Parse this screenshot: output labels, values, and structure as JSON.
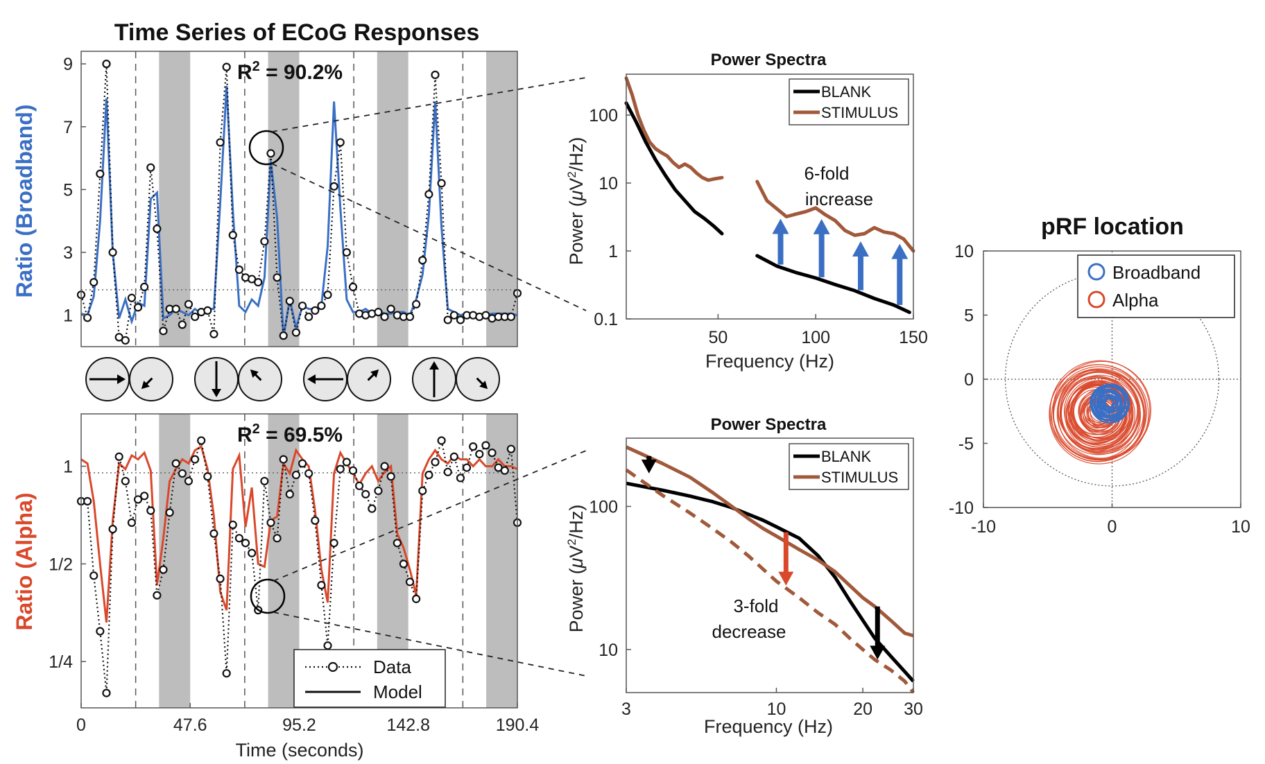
{
  "colors": {
    "broadband": "#3a6fc4",
    "alpha": "#d9482b",
    "stimulus": "#a0593a",
    "blank": "#000000",
    "shade": "#bdbdbd"
  },
  "chart_data": [
    {
      "id": "ts_broadband",
      "type": "line",
      "title": "Time Series of ECoG Responses",
      "ylabel": "Ratio (Broadband)",
      "annotation_prefix": "R",
      "annotation_sup": "2",
      "annotation_value": " = 90.2%",
      "ylim": [
        0,
        9.4
      ],
      "yticks": [
        {
          "v": 1,
          "label": "1"
        },
        {
          "v": 3,
          "label": "3"
        },
        {
          "v": 5,
          "label": "5"
        },
        {
          "v": 7,
          "label": "7"
        },
        {
          "v": 9,
          "label": "9"
        }
      ],
      "xlim": [
        0,
        190.4
      ],
      "shaded_intervals": [
        [
          34,
          47.6
        ],
        [
          81.6,
          95.2
        ],
        [
          129.2,
          142.8
        ],
        [
          176.8,
          190.4
        ]
      ],
      "dashed_lines": [
        23.8,
        71.4,
        119,
        166.6
      ],
      "data": [
        1.65,
        0.92,
        2.05,
        5.5,
        9,
        3,
        0.3,
        0.2,
        1.55,
        1.25,
        1.9,
        5.7,
        3.75,
        0.5,
        1.2,
        1.2,
        0.7,
        1.35,
        0.95,
        1.1,
        1.15,
        0.4,
        6.5,
        8.9,
        3.55,
        2.45,
        2.2,
        2.15,
        2.05,
        3.35,
        6.15,
        2.2,
        0.35,
        1.45,
        0.45,
        1.3,
        0.95,
        1.15,
        1.3,
        1.65,
        5.1,
        6.5,
        3.0,
        1.9,
        1.05,
        1.0,
        1.05,
        1.1,
        0.95,
        1.2,
        1.0,
        0.95,
        0.95,
        1.35,
        2.75,
        4.85,
        8.65,
        5.2,
        0.85,
        1.0,
        0.85,
        1.0,
        1.0,
        0.95,
        1.0,
        0.9,
        0.95,
        0.95,
        0.95,
        1.7
      ],
      "model": [
        1.05,
        1.0,
        1.6,
        4.0,
        7.9,
        3.0,
        0.9,
        1.5,
        0.8,
        1.4,
        1.3,
        4.7,
        4.9,
        0.9,
        1.0,
        1.2,
        1.1,
        1.0,
        1.2,
        1.05,
        1.2,
        1.2,
        4.6,
        8.3,
        4.3,
        1.3,
        1.1,
        1.5,
        1.3,
        2.2,
        5.9,
        4.1,
        0.3,
        1.5,
        0.6,
        1.3,
        1.2,
        1.2,
        1.3,
        3.2,
        7.8,
        4.4,
        1.5,
        1.1,
        1.1,
        1.2,
        1.05,
        1.15,
        1.05,
        1.05,
        1.1,
        1.1,
        1.0,
        1.5,
        2.3,
        4.2,
        7.8,
        3.8,
        1.2,
        1.1,
        1.0,
        1.05,
        1.0,
        1.05,
        1.0,
        1.05,
        1.05,
        1.05,
        1.05,
        1.0
      ]
    },
    {
      "id": "ts_alpha",
      "type": "line",
      "xlabel": "Time (seconds)",
      "ylabel": "Ratio (Alpha)",
      "annotation_prefix": "R",
      "annotation_sup": "2",
      "annotation_value": " = 69.5%",
      "yscale": "log2",
      "ylim": [
        0.18,
        1.45
      ],
      "yticks": [
        {
          "v": 1,
          "label": "1"
        },
        {
          "v": 0.5,
          "label": "1/2"
        },
        {
          "v": 0.25,
          "label": "1/4"
        }
      ],
      "xticks": [
        {
          "v": 0,
          "label": "0"
        },
        {
          "v": 47.6,
          "label": "47.6"
        },
        {
          "v": 95.2,
          "label": "95.2"
        },
        {
          "v": 142.8,
          "label": "142.8"
        },
        {
          "v": 190.4,
          "label": "190.4"
        }
      ],
      "xlim": [
        0,
        190.4
      ],
      "shaded_intervals": [
        [
          34,
          47.6
        ],
        [
          81.6,
          95.2
        ],
        [
          129.2,
          142.8
        ],
        [
          176.8,
          190.4
        ]
      ],
      "dashed_lines": [
        23.8,
        71.4,
        119,
        166.6
      ],
      "legend": [
        {
          "label": "Data",
          "style": "dotted-marker"
        },
        {
          "label": "Model",
          "style": "solid"
        }
      ],
      "data": [
        0.78,
        0.78,
        0.46,
        0.31,
        0.2,
        0.64,
        1.07,
        0.9,
        0.67,
        0.79,
        0.81,
        0.73,
        0.4,
        0.48,
        0.72,
        1.02,
        0.95,
        0.9,
        1.05,
        1.2,
        0.93,
        0.62,
        0.45,
        0.23,
        0.66,
        0.6,
        0.58,
        0.54,
        0.36,
        0.9,
        0.67,
        0.6,
        1.05,
        0.82,
        0.94,
        1.02,
        0.95,
        0.68,
        0.43,
        0.28,
        0.58,
        0.98,
        1.03,
        0.97,
        0.87,
        0.82,
        0.74,
        0.84,
        1.0,
        0.93,
        0.58,
        0.5,
        0.44,
        0.39,
        0.84,
        0.94,
        1.03,
        1.2,
        0.96,
        1.07,
        0.92,
        0.99,
        1.15,
        1.09,
        1.16,
        1.1,
        0.99,
        0.97,
        1.13,
        0.67
      ],
      "model": [
        1.05,
        1.02,
        0.78,
        0.5,
        0.33,
        0.68,
        1.02,
        0.98,
        1.08,
        1.05,
        1.1,
        0.97,
        0.43,
        0.6,
        0.9,
        0.98,
        1.05,
        1.02,
        1.12,
        1.15,
        0.98,
        0.7,
        0.41,
        0.36,
        0.98,
        1.08,
        0.65,
        0.86,
        0.5,
        0.49,
        0.68,
        0.7,
        1.02,
        0.95,
        1.12,
        1.05,
        1.0,
        0.73,
        0.48,
        0.38,
        0.95,
        1.1,
        1.02,
        0.95,
        0.88,
        0.95,
        1.0,
        0.9,
        0.96,
        1.0,
        0.62,
        0.56,
        0.48,
        0.4,
        0.95,
        1.05,
        1.12,
        1.05,
        1.02,
        1.08,
        1.05,
        1.05,
        1.0,
        1.05,
        1.0,
        1.0,
        1.05,
        1.0,
        1.0,
        0.98
      ]
    },
    {
      "id": "spec_broadband",
      "type": "line",
      "title": "Power Spectra",
      "xlabel": "Frequency (Hz)",
      "ylabel_prefix": "Power (",
      "ylabel_mu": "μ",
      "ylabel_v": "V",
      "ylabel_sup": "2",
      "ylabel_suffix": "/Hz)",
      "yscale": "log10",
      "ylim": [
        0.1,
        400
      ],
      "xlim": [
        3,
        150
      ],
      "xticks": [
        {
          "v": 50,
          "label": "50"
        },
        {
          "v": 100,
          "label": "100"
        },
        {
          "v": 150,
          "label": "150"
        }
      ],
      "yticks": [
        {
          "v": 0.1,
          "label": "0.1"
        },
        {
          "v": 1,
          "label": "1"
        },
        {
          "v": 10,
          "label": "10"
        },
        {
          "v": 100,
          "label": "100"
        }
      ],
      "legend": [
        "BLANK",
        "STIMULUS"
      ],
      "annotation_line1": "6-fold",
      "annotation_line2": "increase",
      "series": [
        {
          "name": "BLANK",
          "segments": [
            {
              "x": [
                3,
                8,
                13,
                18,
                23,
                28,
                33,
                38,
                43,
                48,
                52
              ],
              "y": [
                150,
                80,
                40,
                22,
                13,
                8,
                5.5,
                3.8,
                3.0,
                2.3,
                1.8
              ]
            },
            {
              "x": [
                70,
                80,
                90,
                100,
                110,
                120,
                130,
                140,
                148
              ],
              "y": [
                0.85,
                0.6,
                0.48,
                0.4,
                0.32,
                0.26,
                0.2,
                0.16,
                0.125
              ]
            }
          ]
        },
        {
          "name": "STIMULUS",
          "segments": [
            {
              "x": [
                3,
                6,
                9,
                12,
                15,
                18,
                21,
                24,
                27,
                30,
                33,
                36,
                39,
                42,
                45,
                48,
                52
              ],
              "y": [
                350,
                200,
                100,
                60,
                40,
                32,
                28,
                25,
                20,
                17,
                19,
                17,
                14,
                12,
                11,
                11.5,
                12
              ]
            },
            {
              "x": [
                70,
                75,
                80,
                85,
                90,
                95,
                100,
                105,
                110,
                115,
                120,
                125,
                130,
                135,
                140,
                145,
                150
              ],
              "y": [
                10.5,
                5.5,
                4.2,
                3.2,
                3.5,
                3.8,
                4.3,
                3.4,
                2.8,
                2.0,
                1.7,
                1.8,
                2.2,
                1.9,
                1.8,
                1.5,
                1.0
              ]
            }
          ]
        }
      ],
      "arrows_x": [
        82,
        103,
        123,
        143
      ]
    },
    {
      "id": "spec_alpha",
      "type": "line",
      "title": "Power Spectra",
      "xlabel": "Frequency (Hz)",
      "ylabel_prefix": "Power (",
      "ylabel_mu": "μ",
      "ylabel_v": "V",
      "ylabel_sup": "2",
      "ylabel_suffix": "/Hz)",
      "yscale": "log10",
      "xscale": "log10",
      "xlim": [
        3,
        30
      ],
      "ylim": [
        5,
        300
      ],
      "xticks": [
        {
          "v": 3,
          "label": "3"
        },
        {
          "v": 10,
          "label": "10"
        },
        {
          "v": 20,
          "label": "20"
        },
        {
          "v": 30,
          "label": "30"
        }
      ],
      "yticks": [
        {
          "v": 10,
          "label": "10"
        },
        {
          "v": 100,
          "label": "100"
        }
      ],
      "legend": [
        "BLANK",
        "STIMULUS"
      ],
      "annotation_line1": "3-fold",
      "annotation_line2": "decrease",
      "series": [
        {
          "name": "BLANK",
          "x": [
            3,
            4,
            5,
            6,
            7,
            8,
            9,
            10,
            12,
            14,
            16,
            18,
            20,
            22,
            25,
            28,
            30
          ],
          "y": [
            145,
            130,
            118,
            108,
            98,
            88,
            80,
            72,
            60,
            45,
            32,
            22,
            16,
            12,
            9,
            7,
            6
          ]
        },
        {
          "name": "STIMULUS",
          "x": [
            3,
            4,
            5,
            6,
            7,
            8,
            9,
            10,
            12,
            14,
            16,
            18,
            20,
            22,
            25,
            28,
            30
          ],
          "y": [
            260,
            200,
            160,
            125,
            100,
            82,
            70,
            62,
            50,
            42,
            35,
            28,
            23,
            20,
            16,
            13,
            12.5
          ]
        },
        {
          "name": "STIMULUS (dashed)",
          "x": [
            3,
            4,
            5,
            6,
            7,
            8,
            10,
            12,
            14,
            16,
            18,
            20,
            22,
            25,
            28,
            30
          ],
          "y": [
            180,
            120,
            90,
            70,
            56,
            45,
            30,
            23,
            18,
            15,
            12,
            10,
            8.5,
            7.2,
            6,
            5
          ]
        }
      ]
    },
    {
      "id": "prf",
      "type": "scatter",
      "title": "pRF location",
      "xlim": [
        -10,
        10
      ],
      "ylim": [
        -10,
        10
      ],
      "xticks": [
        {
          "v": -10,
          "label": "-10"
        },
        {
          "v": 0,
          "label": "0"
        },
        {
          "v": 10,
          "label": "10"
        }
      ],
      "yticks": [
        {
          "v": 10,
          "label": "10"
        },
        {
          "v": 5,
          "label": "5"
        },
        {
          "v": 0,
          "label": "0"
        },
        {
          "v": -5,
          "label": "-5"
        },
        {
          "v": -10,
          "label": "-10"
        }
      ],
      "reference_circle_radius": 8.3,
      "legend": [
        "Broadband",
        "Alpha"
      ],
      "alpha_center": [
        -1.0,
        -2.6
      ],
      "alpha_radius_range": [
        0.8,
        3.9
      ],
      "broadband_center": [
        -0.2,
        -1.8
      ],
      "broadband_radius_range": [
        0.3,
        1.5
      ]
    }
  ]
}
